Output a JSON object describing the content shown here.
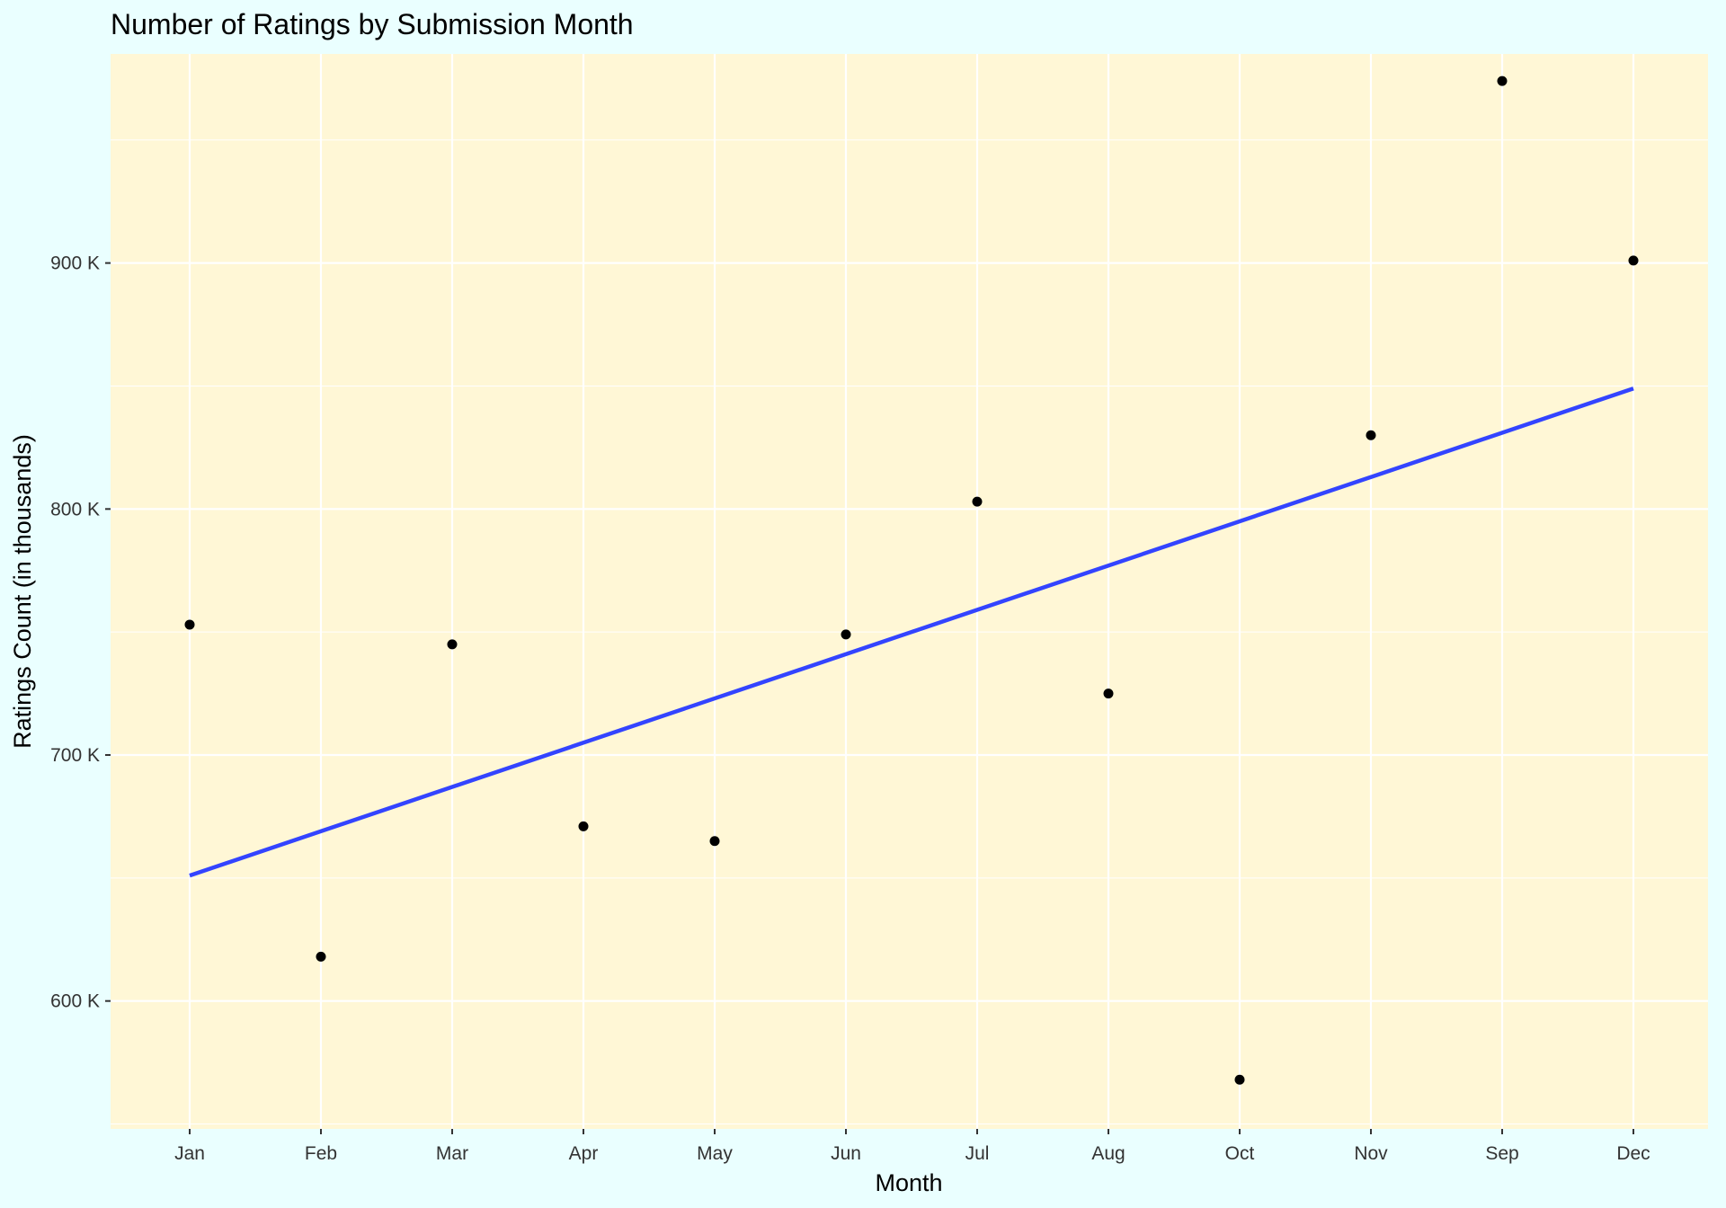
{
  "chart_data": {
    "type": "scatter",
    "title": "Number of Ratings by Submission Month",
    "xlabel": "Month",
    "ylabel": "Ratings Count (in thousands)",
    "categories": [
      "Jan",
      "Feb",
      "Mar",
      "Apr",
      "May",
      "Jun",
      "Jul",
      "Aug",
      "Oct",
      "Nov",
      "Sep",
      "Dec"
    ],
    "series": [
      {
        "values": [
          753,
          618,
          745,
          671,
          665,
          749,
          803,
          725,
          568,
          830,
          974,
          901
        ],
        "color": "#000000"
      }
    ],
    "trend_line": {
      "type": "linear",
      "start": 651,
      "end": 849,
      "color": "#3344FF"
    },
    "yticks": [
      600,
      700,
      800,
      900
    ],
    "ytick_labels": [
      "600 K",
      "700 K",
      "800 K",
      "900 K"
    ],
    "ylim": [
      548,
      985
    ],
    "grid": true,
    "panel_background": "#FFF7D6",
    "page_background": "#EAFFFF",
    "grid_color": "#FFFFFF"
  }
}
